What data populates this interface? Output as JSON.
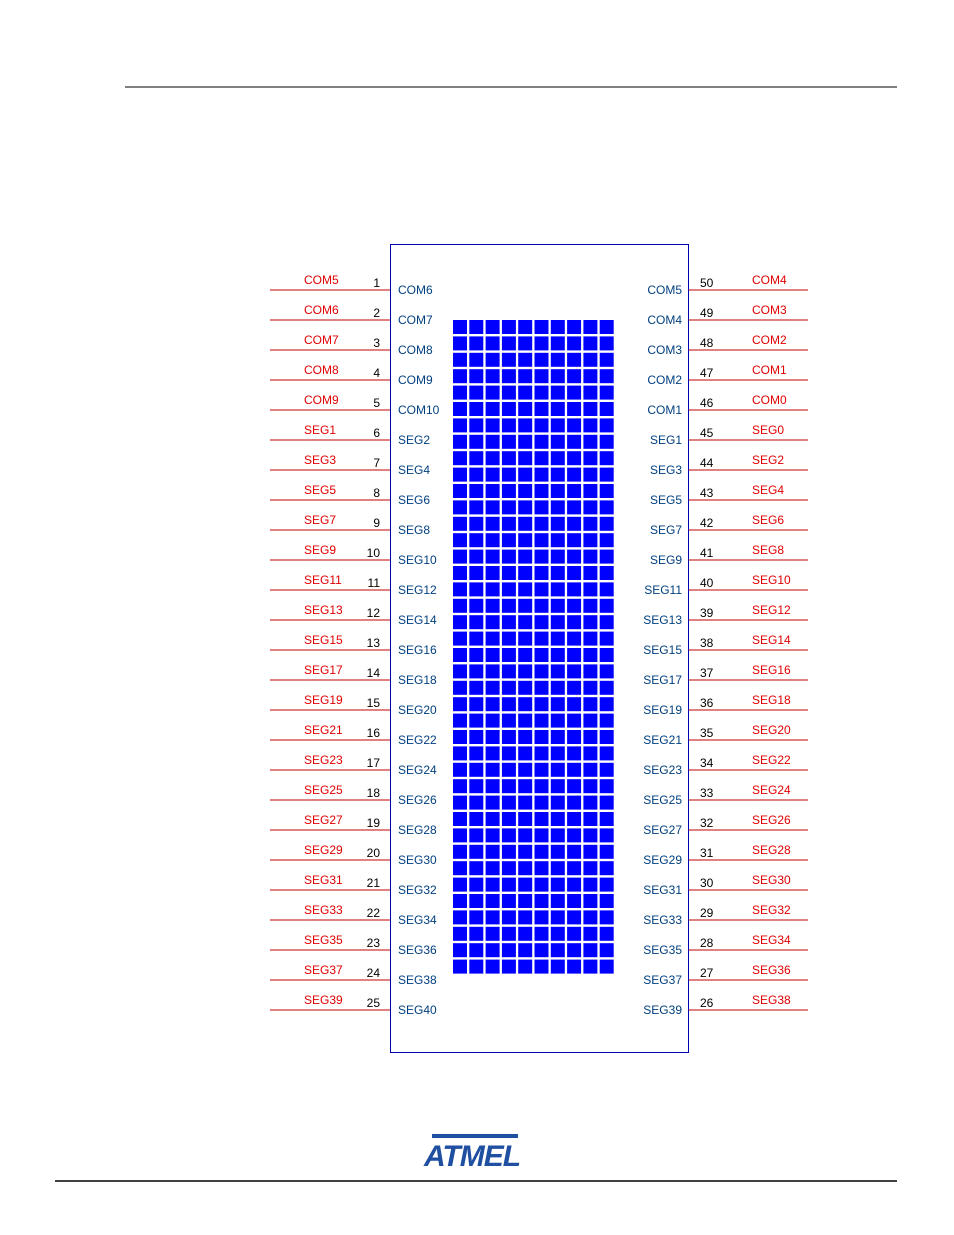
{
  "left_pins": [
    {
      "pin": 1,
      "net": "COM5",
      "signal": "COM6"
    },
    {
      "pin": 2,
      "net": "COM6",
      "signal": "COM7"
    },
    {
      "pin": 3,
      "net": "COM7",
      "signal": "COM8"
    },
    {
      "pin": 4,
      "net": "COM8",
      "signal": "COM9"
    },
    {
      "pin": 5,
      "net": "COM9",
      "signal": "COM10"
    },
    {
      "pin": 6,
      "net": "SEG1",
      "signal": "SEG2"
    },
    {
      "pin": 7,
      "net": "SEG3",
      "signal": "SEG4"
    },
    {
      "pin": 8,
      "net": "SEG5",
      "signal": "SEG6"
    },
    {
      "pin": 9,
      "net": "SEG7",
      "signal": "SEG8"
    },
    {
      "pin": 10,
      "net": "SEG9",
      "signal": "SEG10"
    },
    {
      "pin": 11,
      "net": "SEG11",
      "signal": "SEG12"
    },
    {
      "pin": 12,
      "net": "SEG13",
      "signal": "SEG14"
    },
    {
      "pin": 13,
      "net": "SEG15",
      "signal": "SEG16"
    },
    {
      "pin": 14,
      "net": "SEG17",
      "signal": "SEG18"
    },
    {
      "pin": 15,
      "net": "SEG19",
      "signal": "SEG20"
    },
    {
      "pin": 16,
      "net": "SEG21",
      "signal": "SEG22"
    },
    {
      "pin": 17,
      "net": "SEG23",
      "signal": "SEG24"
    },
    {
      "pin": 18,
      "net": "SEG25",
      "signal": "SEG26"
    },
    {
      "pin": 19,
      "net": "SEG27",
      "signal": "SEG28"
    },
    {
      "pin": 20,
      "net": "SEG29",
      "signal": "SEG30"
    },
    {
      "pin": 21,
      "net": "SEG31",
      "signal": "SEG32"
    },
    {
      "pin": 22,
      "net": "SEG33",
      "signal": "SEG34"
    },
    {
      "pin": 23,
      "net": "SEG35",
      "signal": "SEG36"
    },
    {
      "pin": 24,
      "net": "SEG37",
      "signal": "SEG38"
    },
    {
      "pin": 25,
      "net": "SEG39",
      "signal": "SEG40"
    }
  ],
  "right_pins": [
    {
      "pin": 50,
      "net": "COM4",
      "signal": "COM5"
    },
    {
      "pin": 49,
      "net": "COM3",
      "signal": "COM4"
    },
    {
      "pin": 48,
      "net": "COM2",
      "signal": "COM3"
    },
    {
      "pin": 47,
      "net": "COM1",
      "signal": "COM2"
    },
    {
      "pin": 46,
      "net": "COM0",
      "signal": "COM1"
    },
    {
      "pin": 45,
      "net": "SEG0",
      "signal": "SEG1"
    },
    {
      "pin": 44,
      "net": "SEG2",
      "signal": "SEG3"
    },
    {
      "pin": 43,
      "net": "SEG4",
      "signal": "SEG5"
    },
    {
      "pin": 42,
      "net": "SEG6",
      "signal": "SEG7"
    },
    {
      "pin": 41,
      "net": "SEG8",
      "signal": "SEG9"
    },
    {
      "pin": 40,
      "net": "SEG10",
      "signal": "SEG11"
    },
    {
      "pin": 39,
      "net": "SEG12",
      "signal": "SEG13"
    },
    {
      "pin": 38,
      "net": "SEG14",
      "signal": "SEG15"
    },
    {
      "pin": 37,
      "net": "SEG16",
      "signal": "SEG17"
    },
    {
      "pin": 36,
      "net": "SEG18",
      "signal": "SEG19"
    },
    {
      "pin": 35,
      "net": "SEG20",
      "signal": "SEG21"
    },
    {
      "pin": 34,
      "net": "SEG22",
      "signal": "SEG23"
    },
    {
      "pin": 33,
      "net": "SEG24",
      "signal": "SEG25"
    },
    {
      "pin": 32,
      "net": "SEG26",
      "signal": "SEG27"
    },
    {
      "pin": 31,
      "net": "SEG28",
      "signal": "SEG29"
    },
    {
      "pin": 30,
      "net": "SEG30",
      "signal": "SEG31"
    },
    {
      "pin": 29,
      "net": "SEG32",
      "signal": "SEG33"
    },
    {
      "pin": 28,
      "net": "SEG34",
      "signal": "SEG35"
    },
    {
      "pin": 27,
      "net": "SEG36",
      "signal": "SEG37"
    },
    {
      "pin": 26,
      "net": "SEG38",
      "signal": "SEG39"
    }
  ],
  "logo": "ATMEL"
}
